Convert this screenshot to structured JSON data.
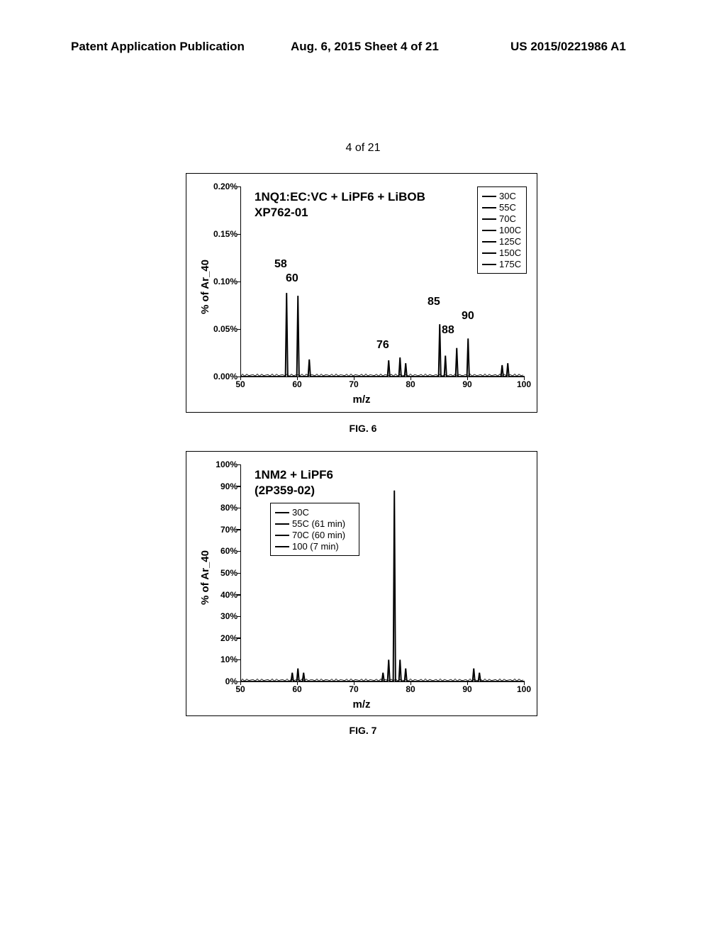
{
  "header": {
    "left": "Patent Application Publication",
    "center": "Aug. 6, 2015   Sheet 4 of 21",
    "right": "US 2015/0221986 A1"
  },
  "sheet_label": "4 of 21",
  "fig1_caption": "FIG. 6",
  "fig2_caption": "FIG. 7",
  "chart1": {
    "type": "line",
    "title_line1": "1NQ1:EC:VC + LiPF6 + LiBOB",
    "title_line2": "XP762-01",
    "ylabel": "% of Ar_40",
    "xlabel": "m/z",
    "xlim": [
      50,
      100
    ],
    "ylim": [
      0,
      0.2
    ],
    "yticks_labels": [
      "0.00%",
      "0.05%",
      "0.10%",
      "0.15%",
      "0.20%"
    ],
    "yticks_pos": [
      0,
      0.05,
      0.1,
      0.15,
      0.2
    ],
    "xticks": [
      50,
      60,
      70,
      80,
      90,
      100
    ],
    "legend": [
      "30C",
      "55C",
      "70C",
      "100C",
      "125C",
      "150C",
      "175C"
    ],
    "peak_labels": [
      {
        "text": "58",
        "mz": 57,
        "pct": 0.11
      },
      {
        "text": "60",
        "mz": 59,
        "pct": 0.095
      },
      {
        "text": "76",
        "mz": 75,
        "pct": 0.025
      },
      {
        "text": "85",
        "mz": 84,
        "pct": 0.07
      },
      {
        "text": "88",
        "mz": 86.5,
        "pct": 0.04
      },
      {
        "text": "90",
        "mz": 90,
        "pct": 0.055
      }
    ],
    "peaks": [
      {
        "mz": 58,
        "h": 0.088
      },
      {
        "mz": 60,
        "h": 0.085
      },
      {
        "mz": 62,
        "h": 0.018
      },
      {
        "mz": 76,
        "h": 0.017
      },
      {
        "mz": 78,
        "h": 0.02
      },
      {
        "mz": 79,
        "h": 0.014
      },
      {
        "mz": 85,
        "h": 0.055
      },
      {
        "mz": 86,
        "h": 0.022
      },
      {
        "mz": 88,
        "h": 0.03
      },
      {
        "mz": 90,
        "h": 0.04
      },
      {
        "mz": 96,
        "h": 0.012
      },
      {
        "mz": 97,
        "h": 0.014
      }
    ],
    "bg_color": "#ffffff",
    "line_color": "#000000",
    "axis_fontsize": 12,
    "title_fontsize": 17
  },
  "chart2": {
    "type": "line",
    "title_line1": "1NM2 + LiPF6",
    "title_line2": "(2P359-02)",
    "ylabel": "% of Ar_40",
    "xlabel": "m/z",
    "xlim": [
      50,
      100
    ],
    "ylim": [
      0,
      100
    ],
    "yticks_labels": [
      "0%",
      "10%",
      "20%",
      "30%",
      "40%",
      "50%",
      "60%",
      "70%",
      "80%",
      "90%",
      "100%"
    ],
    "yticks_pos": [
      0,
      10,
      20,
      30,
      40,
      50,
      60,
      70,
      80,
      90,
      100
    ],
    "xticks": [
      50,
      60,
      70,
      80,
      90,
      100
    ],
    "legend": [
      "30C",
      "55C (61 min)",
      "70C (60 min)",
      "100 (7 min)"
    ],
    "peaks": [
      {
        "mz": 59,
        "h": 4
      },
      {
        "mz": 60,
        "h": 6
      },
      {
        "mz": 61,
        "h": 4
      },
      {
        "mz": 75,
        "h": 4
      },
      {
        "mz": 76,
        "h": 10
      },
      {
        "mz": 77,
        "h": 88
      },
      {
        "mz": 78,
        "h": 10
      },
      {
        "mz": 79,
        "h": 6
      },
      {
        "mz": 91,
        "h": 6
      },
      {
        "mz": 92,
        "h": 4
      }
    ],
    "bg_color": "#ffffff",
    "line_color": "#000000",
    "axis_fontsize": 12,
    "title_fontsize": 17
  }
}
